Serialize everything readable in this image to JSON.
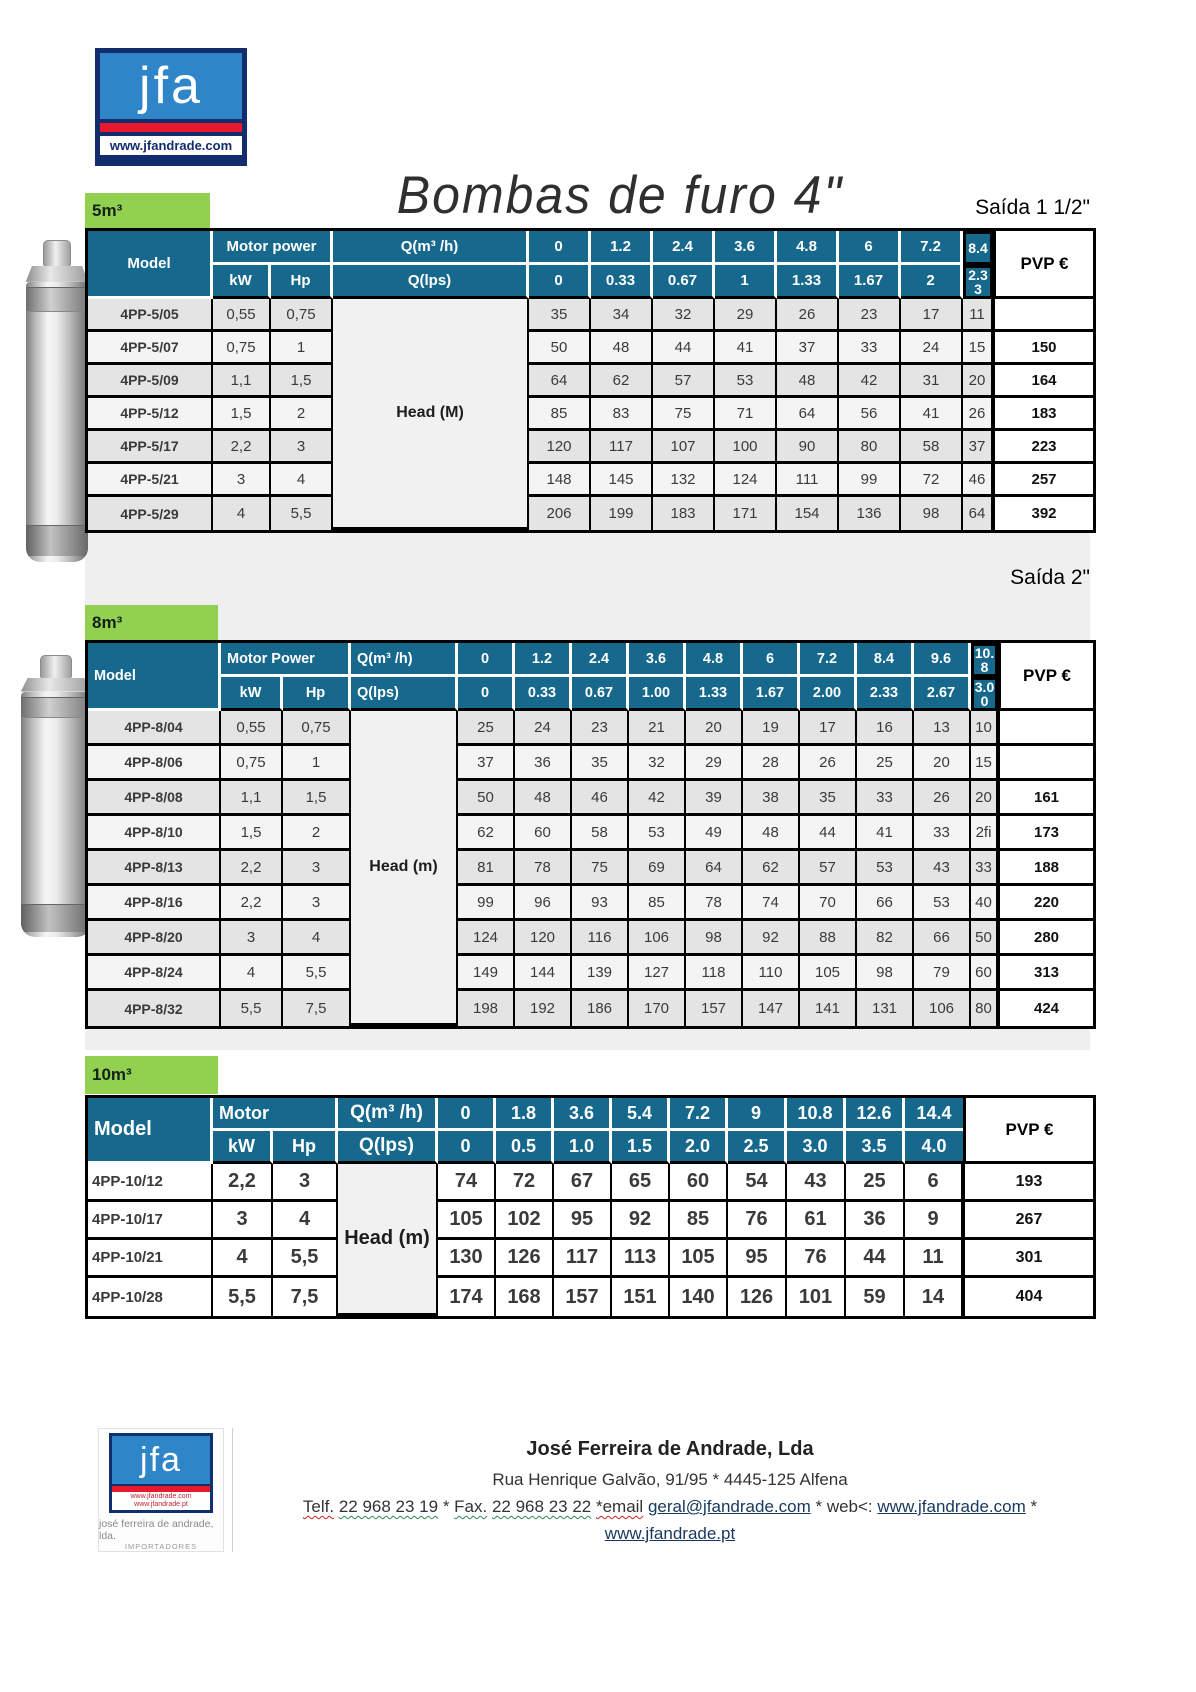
{
  "page_title": "Bombas de furo 4\"",
  "logo": {
    "text": "jfa",
    "url": "www.jfandrade.com"
  },
  "tables": [
    {
      "label": "5m³",
      "saida": "Saída 1 1/2\"",
      "pvp_header": "PVP €",
      "model_header": "Model",
      "motor_header": "Motor power",
      "kw_header": "kW",
      "hp_header": "Hp",
      "qm_header": "Q(m³ /h)",
      "ql_header": "Q(lps)",
      "head_label": "Head (M)",
      "flow_m3h": [
        "0",
        "1.2",
        "2.4",
        "3.6",
        "4.8",
        "6",
        "7.2",
        "8.4"
      ],
      "flow_lps": [
        "0",
        "0.33",
        "0.67",
        "1",
        "1.33",
        "1.67",
        "2",
        "2.33"
      ],
      "rows": [
        {
          "model": "4PP-5/05",
          "kw": "0,55",
          "hp": "0,75",
          "values": [
            "35",
            "34",
            "32",
            "29",
            "26",
            "23",
            "17",
            "11"
          ],
          "pvp": ""
        },
        {
          "model": "4PP-5/07",
          "kw": "0,75",
          "hp": "1",
          "values": [
            "50",
            "48",
            "44",
            "41",
            "37",
            "33",
            "24",
            "15"
          ],
          "pvp": "150"
        },
        {
          "model": "4PP-5/09",
          "kw": "1,1",
          "hp": "1,5",
          "values": [
            "64",
            "62",
            "57",
            "53",
            "48",
            "42",
            "31",
            "20"
          ],
          "pvp": "164"
        },
        {
          "model": "4PP-5/12",
          "kw": "1,5",
          "hp": "2",
          "values": [
            "85",
            "83",
            "75",
            "71",
            "64",
            "56",
            "41",
            "26"
          ],
          "pvp": "183"
        },
        {
          "model": "4PP-5/17",
          "kw": "2,2",
          "hp": "3",
          "values": [
            "120",
            "117",
            "107",
            "100",
            "90",
            "80",
            "58",
            "37"
          ],
          "pvp": "223"
        },
        {
          "model": "4PP-5/21",
          "kw": "3",
          "hp": "4",
          "values": [
            "148",
            "145",
            "132",
            "124",
            "111",
            "99",
            "72",
            "46"
          ],
          "pvp": "257"
        },
        {
          "model": "4PP-5/29",
          "kw": "4",
          "hp": "5,5",
          "values": [
            "206",
            "199",
            "183",
            "171",
            "154",
            "136",
            "98",
            "64"
          ],
          "pvp": "392"
        }
      ]
    },
    {
      "label": "8m³",
      "saida": "Saída 2\"",
      "pvp_header": "PVP €",
      "model_header": "Model",
      "motor_header": "Motor Power",
      "kw_header": "kW",
      "hp_header": "Hp",
      "qm_header": "Q(m³ /h)",
      "ql_header": "Q(lps)",
      "head_label": "Head (m)",
      "flow_m3h": [
        "0",
        "1.2",
        "2.4",
        "3.6",
        "4.8",
        "6",
        "7.2",
        "8.4",
        "9.6",
        "10.8"
      ],
      "flow_lps": [
        "0",
        "0.33",
        "0.67",
        "1.00",
        "1.33",
        "1.67",
        "2.00",
        "2.33",
        "2.67",
        "3.00"
      ],
      "rows": [
        {
          "model": "4PP-8/04",
          "kw": "0,55",
          "hp": "0,75",
          "values": [
            "25",
            "24",
            "23",
            "21",
            "20",
            "19",
            "17",
            "16",
            "13",
            "10"
          ],
          "pvp": ""
        },
        {
          "model": "4PP-8/06",
          "kw": "0,75",
          "hp": "1",
          "values": [
            "37",
            "36",
            "35",
            "32",
            "29",
            "28",
            "26",
            "25",
            "20",
            "15"
          ],
          "pvp": ""
        },
        {
          "model": "4PP-8/08",
          "kw": "1,1",
          "hp": "1,5",
          "values": [
            "50",
            "48",
            "46",
            "42",
            "39",
            "38",
            "35",
            "33",
            "26",
            "20"
          ],
          "pvp": "161"
        },
        {
          "model": "4PP-8/10",
          "kw": "1,5",
          "hp": "2",
          "values": [
            "62",
            "60",
            "58",
            "53",
            "49",
            "48",
            "44",
            "41",
            "33",
            "2fi"
          ],
          "pvp": "173"
        },
        {
          "model": "4PP-8/13",
          "kw": "2,2",
          "hp": "3",
          "values": [
            "81",
            "78",
            "75",
            "69",
            "64",
            "62",
            "57",
            "53",
            "43",
            "33"
          ],
          "pvp": "188"
        },
        {
          "model": "4PP-8/16",
          "kw": "2,2",
          "hp": "3",
          "values": [
            "99",
            "96",
            "93",
            "85",
            "78",
            "74",
            "70",
            "66",
            "53",
            "40"
          ],
          "pvp": "220"
        },
        {
          "model": "4PP-8/20",
          "kw": "3",
          "hp": "4",
          "values": [
            "124",
            "120",
            "116",
            "106",
            "98",
            "92",
            "88",
            "82",
            "66",
            "50"
          ],
          "pvp": "280"
        },
        {
          "model": "4PP-8/24",
          "kw": "4",
          "hp": "5,5",
          "values": [
            "149",
            "144",
            "139",
            "127",
            "118",
            "110",
            "105",
            "98",
            "79",
            "60"
          ],
          "pvp": "313"
        },
        {
          "model": "4PP-8/32",
          "kw": "5,5",
          "hp": "7,5",
          "values": [
            "198",
            "192",
            "186",
            "170",
            "157",
            "147",
            "141",
            "131",
            "106",
            "80"
          ],
          "pvp": "424"
        }
      ]
    },
    {
      "label": "10m³",
      "saida": "",
      "pvp_header": "PVP €",
      "model_header": "Model",
      "motor_header": "Motor",
      "kw_header": "kW",
      "hp_header": "Hp",
      "qm_header": "Q(m³ /h)",
      "ql_header": "Q(lps)",
      "head_label": "Head (m)",
      "flow_m3h": [
        "0",
        "1.8",
        "3.6",
        "5.4",
        "7.2",
        "9",
        "10.8",
        "12.6",
        "14.4"
      ],
      "flow_lps": [
        "0",
        "0.5",
        "1.0",
        "1.5",
        "2.0",
        "2.5",
        "3.0",
        "3.5",
        "4.0"
      ],
      "rows": [
        {
          "model": "4PP-10/12",
          "kw": "2,2",
          "hp": "3",
          "values": [
            "74",
            "72",
            "67",
            "65",
            "60",
            "54",
            "43",
            "25",
            "6"
          ],
          "pvp": "193"
        },
        {
          "model": "4PP-10/17",
          "kw": "3",
          "hp": "4",
          "values": [
            "105",
            "102",
            "95",
            "92",
            "85",
            "76",
            "61",
            "36",
            "9"
          ],
          "pvp": "267"
        },
        {
          "model": "4PP-10/21",
          "kw": "4",
          "hp": "5,5",
          "values": [
            "130",
            "126",
            "117",
            "113",
            "105",
            "95",
            "76",
            "44",
            "11"
          ],
          "pvp": "301"
        },
        {
          "model": "4PP-10/28",
          "kw": "5,5",
          "hp": "7,5",
          "values": [
            "174",
            "168",
            "157",
            "151",
            "140",
            "126",
            "101",
            "59",
            "14"
          ],
          "pvp": "404"
        }
      ]
    }
  ],
  "footer": {
    "logo_text": "jfa",
    "logo_url1": "www.jfandrade.com",
    "logo_url2": "www.jfandrade.pt",
    "logo_caption1": "josé ferreira de andrade, lda.",
    "logo_caption2": "IMPORTADORES",
    "company": "José Ferreira de Andrade, Lda",
    "address": "Rua Henrique Galvão, 91/95 * 4445-125 Alfena",
    "contact": {
      "telf_label": "Telf.",
      "telf_num": "22 968 23 19",
      "sep1": "*",
      "fax_label": "Fax.",
      "fax_num": "22 968 23 22",
      "email_label": "*email",
      "email": "geral@jfandrade.com",
      "web_label": "* web<:",
      "web": "www.jfandrade.com",
      "sep2": "*"
    },
    "site": "www.jfandrade.pt"
  },
  "colors": {
    "header_teal": "#16688c",
    "label_green": "#92d050",
    "logo_blue": "#2e86c8",
    "logo_navy": "#122c6e",
    "logo_red": "#e8192c",
    "link_navy": "#17375e"
  }
}
